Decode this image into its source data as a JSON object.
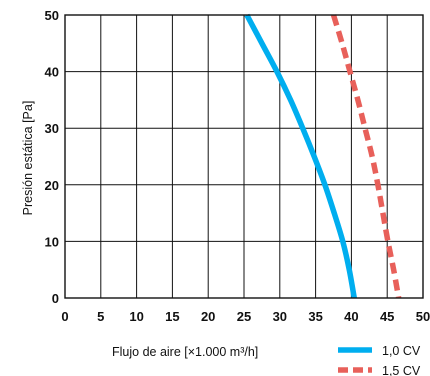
{
  "chart_data": {
    "type": "line",
    "xlabel": "Flujo de aire  [×1.000 m³/h]",
    "ylabel": "Presión estática  [Pa]",
    "xlim": [
      0,
      50
    ],
    "ylim": [
      0,
      50
    ],
    "xticks": [
      "0",
      "5",
      "10",
      "15",
      "20",
      "25",
      "30",
      "35",
      "40",
      "45",
      "50"
    ],
    "yticks": [
      "0",
      "10",
      "20",
      "30",
      "40",
      "50"
    ],
    "grid": true,
    "legend_position": "bottom-right",
    "series": [
      {
        "name": "1,0 CV",
        "color": "#00aeef",
        "style": "solid",
        "points": [
          [
            25.4,
            50
          ],
          [
            27.5,
            45
          ],
          [
            29.6,
            40
          ],
          [
            31.5,
            35
          ],
          [
            33.2,
            30
          ],
          [
            34.8,
            25
          ],
          [
            36.3,
            20
          ],
          [
            37.6,
            15
          ],
          [
            38.8,
            10
          ],
          [
            39.7,
            5
          ],
          [
            40.4,
            0
          ]
        ]
      },
      {
        "name": "1,5 CV",
        "color": "#e8605a",
        "style": "dashed",
        "points": [
          [
            37.5,
            50
          ],
          [
            38.7,
            45
          ],
          [
            39.8,
            40
          ],
          [
            40.9,
            35
          ],
          [
            41.9,
            30
          ],
          [
            42.9,
            25
          ],
          [
            43.7,
            20
          ],
          [
            44.4,
            15
          ],
          [
            45.1,
            10
          ],
          [
            45.9,
            5
          ],
          [
            46.6,
            0
          ]
        ]
      }
    ]
  }
}
